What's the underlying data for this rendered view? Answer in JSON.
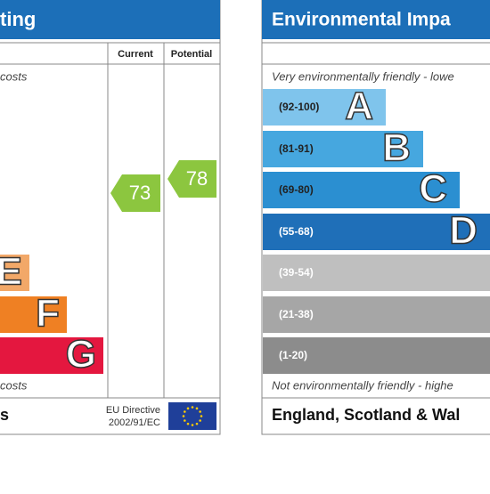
{
  "left": {
    "title": "ting",
    "columns": [
      "Current",
      "Potential"
    ],
    "top_note": "costs",
    "bottom_note": "costs",
    "bands": [
      {
        "letter": "E"
      },
      {
        "letter": "F"
      },
      {
        "letter": "G"
      }
    ],
    "current": "73",
    "potential": "78",
    "footer": "s",
    "directive": [
      "EU Directive",
      "2002/91/EC"
    ]
  },
  "right": {
    "title": "Environmental Impa",
    "top_note": "Very environmentally friendly - lowe",
    "bottom_note": "Not environmentally friendly - highe",
    "bands": [
      {
        "range": "(92-100)",
        "letter": "A"
      },
      {
        "range": "(81-91)",
        "letter": "B"
      },
      {
        "range": "(69-80)",
        "letter": "C"
      },
      {
        "range": "(55-68)",
        "letter": "D"
      },
      {
        "range": "(39-54)"
      },
      {
        "range": "(21-38)"
      },
      {
        "range": "(1-20)"
      }
    ],
    "footer": "England, Scotland & Wal"
  }
}
